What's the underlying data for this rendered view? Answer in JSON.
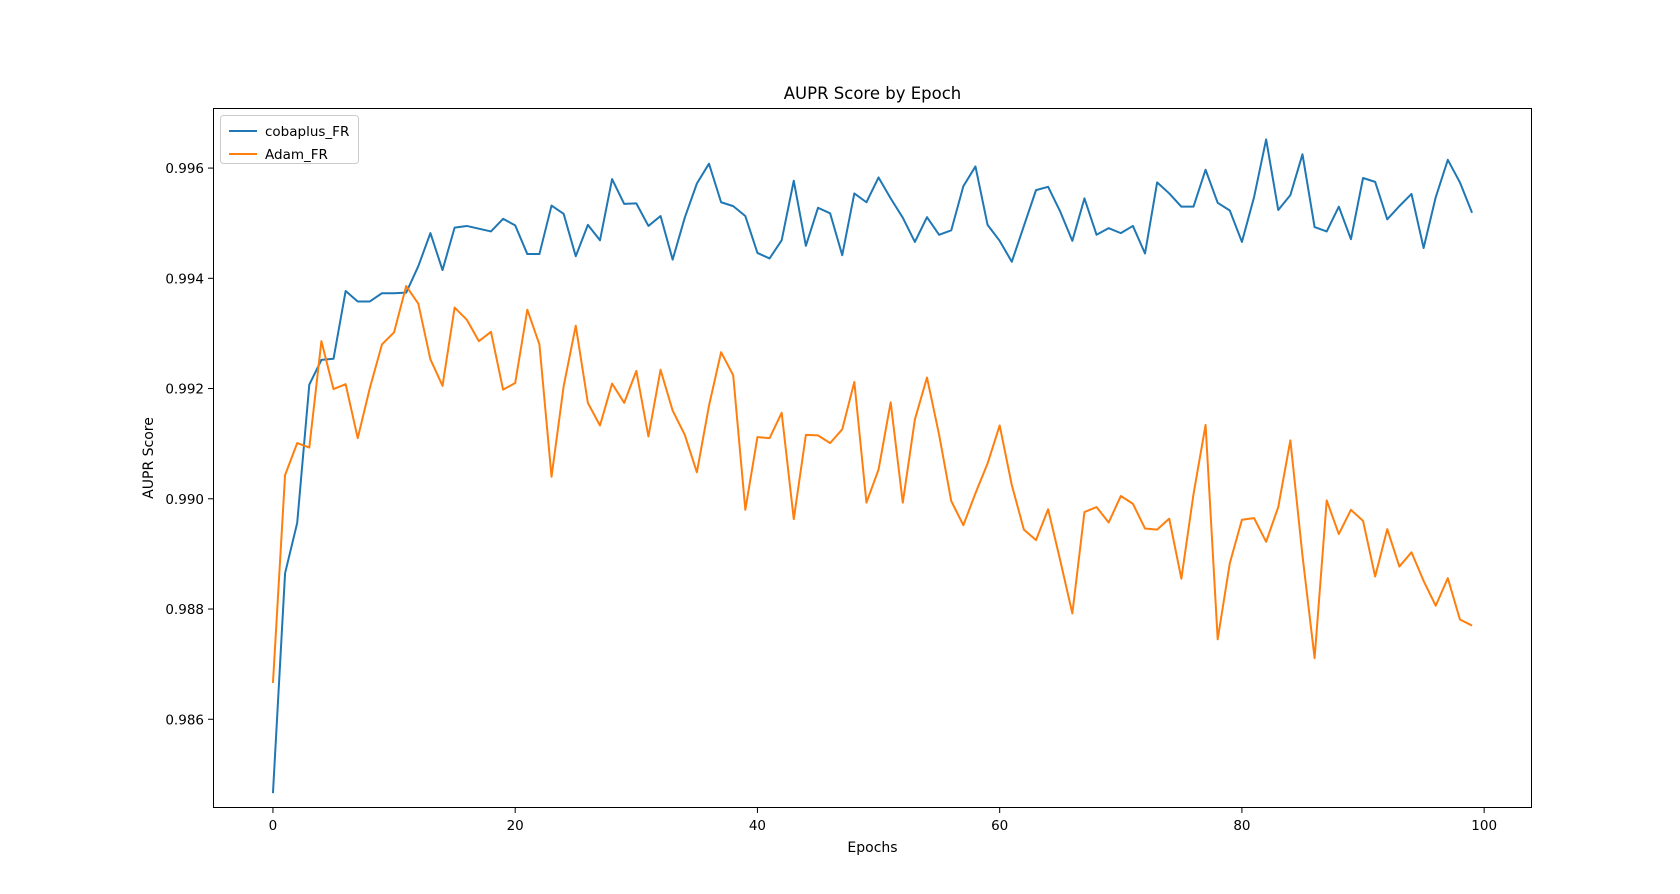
{
  "chart_data": {
    "type": "line",
    "title": "AUPR Score by Epoch",
    "xlabel": "Epochs",
    "ylabel": "AUPR Score",
    "xlim": [
      -4.95,
      103.95
    ],
    "ylim": [
      0.98439,
      0.99709
    ],
    "xticks": [
      0,
      20,
      40,
      60,
      80,
      100
    ],
    "yticks": [
      0.986,
      0.988,
      0.99,
      0.992,
      0.994,
      0.996
    ],
    "ytick_labels": [
      "0.986",
      "0.988",
      "0.990",
      "0.992",
      "0.994",
      "0.996"
    ],
    "grid": false,
    "legend_position": "top-left",
    "series": [
      {
        "name": "cobaplus_FR",
        "color": "#1f77b4",
        "x": [
          0,
          1,
          2,
          3,
          4,
          5,
          6,
          7,
          8,
          9,
          10,
          11,
          12,
          13,
          14,
          15,
          16,
          17,
          18,
          19,
          20,
          21,
          22,
          23,
          24,
          25,
          26,
          27,
          28,
          29,
          30,
          31,
          32,
          33,
          34,
          35,
          36,
          37,
          38,
          39,
          40,
          41,
          42,
          43,
          44,
          45,
          46,
          47,
          48,
          49,
          50,
          51,
          52,
          53,
          54,
          55,
          56,
          57,
          58,
          59,
          60,
          61,
          62,
          63,
          64,
          65,
          66,
          67,
          68,
          69,
          70,
          71,
          72,
          73,
          74,
          75,
          76,
          77,
          78,
          79,
          80,
          81,
          82,
          83,
          84,
          85,
          86,
          87,
          88,
          89,
          90,
          91,
          92,
          93,
          94,
          95,
          96,
          97,
          98,
          99
        ],
        "values": [
          0.98466,
          0.98865,
          0.98956,
          0.99207,
          0.99252,
          0.99254,
          0.99377,
          0.99358,
          0.99358,
          0.99373,
          0.99373,
          0.99374,
          0.99422,
          0.99482,
          0.99415,
          0.99492,
          0.99495,
          0.9949,
          0.99485,
          0.99508,
          0.99496,
          0.99444,
          0.99444,
          0.99532,
          0.99517,
          0.9944,
          0.99497,
          0.99469,
          0.9958,
          0.99535,
          0.99536,
          0.99495,
          0.99513,
          0.99434,
          0.9951,
          0.99572,
          0.99608,
          0.99538,
          0.99531,
          0.99513,
          0.99446,
          0.99436,
          0.99469,
          0.99577,
          0.99459,
          0.99528,
          0.99518,
          0.99442,
          0.99554,
          0.99538,
          0.99583,
          0.99545,
          0.9951,
          0.99466,
          0.99511,
          0.99479,
          0.99487,
          0.99567,
          0.99603,
          0.99497,
          0.99468,
          0.9943,
          0.99495,
          0.9956,
          0.99566,
          0.99521,
          0.99468,
          0.99545,
          0.99479,
          0.99491,
          0.99482,
          0.99495,
          0.99445,
          0.99574,
          0.99554,
          0.9953,
          0.9953,
          0.99597,
          0.99537,
          0.99523,
          0.99466,
          0.99547,
          0.99652,
          0.99524,
          0.99551,
          0.99625,
          0.99493,
          0.99485,
          0.9953,
          0.99471,
          0.99582,
          0.99575,
          0.99507,
          0.99531,
          0.99553,
          0.99455,
          0.99547,
          0.99615,
          0.99574,
          0.99519
        ]
      },
      {
        "name": "Adam_FR",
        "color": "#ff7f0e",
        "x": [
          0,
          1,
          2,
          3,
          4,
          5,
          6,
          7,
          8,
          9,
          10,
          11,
          12,
          13,
          14,
          15,
          16,
          17,
          18,
          19,
          20,
          21,
          22,
          23,
          24,
          25,
          26,
          27,
          28,
          29,
          30,
          31,
          32,
          33,
          34,
          35,
          36,
          37,
          38,
          39,
          40,
          41,
          42,
          43,
          44,
          45,
          46,
          47,
          48,
          49,
          50,
          51,
          52,
          53,
          54,
          55,
          56,
          57,
          58,
          59,
          60,
          61,
          62,
          63,
          64,
          65,
          66,
          67,
          68,
          69,
          70,
          71,
          72,
          73,
          74,
          75,
          76,
          77,
          78,
          79,
          80,
          81,
          82,
          83,
          84,
          85,
          86,
          87,
          88,
          89,
          90,
          91,
          92,
          93,
          94,
          95,
          96,
          97,
          98,
          99
        ],
        "values": [
          0.98666,
          0.99043,
          0.99101,
          0.99093,
          0.99286,
          0.99199,
          0.99208,
          0.9911,
          0.99201,
          0.9928,
          0.99302,
          0.99386,
          0.99354,
          0.99253,
          0.99205,
          0.99347,
          0.99325,
          0.99286,
          0.99303,
          0.99198,
          0.9921,
          0.99343,
          0.9928,
          0.9904,
          0.99204,
          0.99314,
          0.99174,
          0.99133,
          0.99209,
          0.99174,
          0.99232,
          0.99113,
          0.99234,
          0.9916,
          0.99116,
          0.99048,
          0.99169,
          0.99266,
          0.99224,
          0.9898,
          0.99112,
          0.9911,
          0.99156,
          0.98963,
          0.99116,
          0.99115,
          0.99101,
          0.99126,
          0.99212,
          0.98993,
          0.99053,
          0.99175,
          0.98993,
          0.99144,
          0.9922,
          0.99116,
          0.98996,
          0.98952,
          0.9901,
          0.99064,
          0.99133,
          0.99025,
          0.98944,
          0.98925,
          0.98981,
          0.98888,
          0.98792,
          0.98976,
          0.98985,
          0.98957,
          0.99005,
          0.98991,
          0.98946,
          0.98944,
          0.98964,
          0.98855,
          0.99008,
          0.99134,
          0.98745,
          0.98883,
          0.98962,
          0.98965,
          0.98922,
          0.98985,
          0.99106,
          0.98897,
          0.98711,
          0.98997,
          0.98936,
          0.9898,
          0.9896,
          0.98859,
          0.98945,
          0.98877,
          0.98903,
          0.98851,
          0.98806,
          0.98856,
          0.98781,
          0.9877
        ]
      }
    ]
  }
}
